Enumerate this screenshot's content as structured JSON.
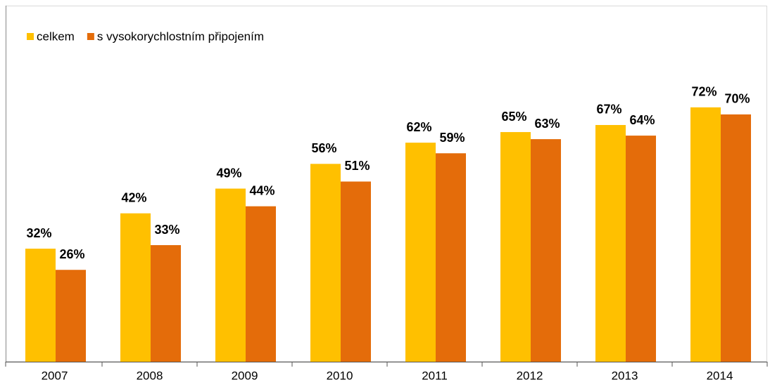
{
  "chart_data": {
    "type": "bar",
    "categories": [
      "2007",
      "2008",
      "2009",
      "2010",
      "2011",
      "2012",
      "2013",
      "2014"
    ],
    "series": [
      {
        "name": "celkem",
        "color": "#ffc000",
        "values": [
          32,
          42,
          49,
          56,
          62,
          65,
          67,
          72
        ],
        "value_labels": [
          "32%",
          "42%",
          "49%",
          "56%",
          "62%",
          "65%",
          "67%",
          "72%"
        ]
      },
      {
        "name": "s vysokorychlostním připojením",
        "color": "#e46c0a",
        "values": [
          26,
          33,
          44,
          51,
          59,
          63,
          64,
          70
        ],
        "value_labels": [
          "26%",
          "33%",
          "44%",
          "51%",
          "59%",
          "63%",
          "64%",
          "70%"
        ]
      }
    ],
    "ylim": [
      0,
      100
    ],
    "legend": "top-left"
  }
}
